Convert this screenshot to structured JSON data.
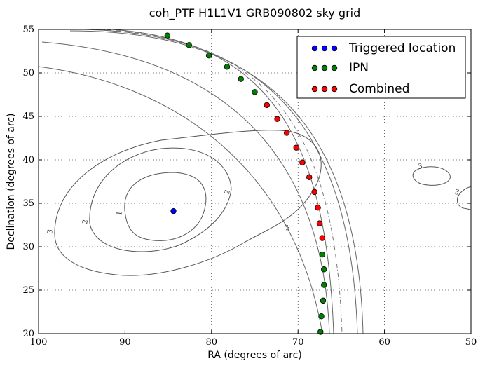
{
  "chart_data": {
    "type": "scatter",
    "title": "coh_PTF H1L1V1 GRB090802 sky grid",
    "xlabel": "RA (degrees of arc)",
    "ylabel": "Declination (degrees of arc)",
    "xlim": [
      100,
      50
    ],
    "ylim": [
      20,
      55
    ],
    "x_ticks": [
      100,
      90,
      80,
      70,
      60,
      50
    ],
    "y_ticks": [
      20,
      25,
      30,
      35,
      40,
      45,
      50,
      55
    ],
    "grid": true,
    "legend_position": "top-right",
    "series": [
      {
        "name": "Triggered location",
        "color": "#0000ff",
        "points": [
          [
            84.4,
            34.1
          ]
        ]
      },
      {
        "name": "IPN",
        "color": "#008000",
        "points": [
          [
            85.1,
            54.3
          ],
          [
            82.6,
            53.2
          ],
          [
            80.3,
            52.0
          ],
          [
            78.2,
            50.7
          ],
          [
            76.6,
            49.3
          ],
          [
            75.0,
            47.8
          ],
          [
            67.2,
            29.1
          ],
          [
            67.0,
            27.4
          ],
          [
            67.0,
            25.6
          ],
          [
            67.1,
            23.8
          ],
          [
            67.3,
            22.0
          ],
          [
            67.4,
            20.2
          ]
        ]
      },
      {
        "name": "Combined",
        "color": "#ff0000",
        "points": [
          [
            73.6,
            46.3
          ],
          [
            72.4,
            44.7
          ],
          [
            71.3,
            43.1
          ],
          [
            70.2,
            41.4
          ],
          [
            69.5,
            39.7
          ],
          [
            68.7,
            38.0
          ],
          [
            68.1,
            36.3
          ],
          [
            67.7,
            34.5
          ],
          [
            67.5,
            32.7
          ],
          [
            67.2,
            31.0
          ]
        ]
      }
    ],
    "contour_labels": [
      "1",
      "2",
      "3",
      "2",
      "3",
      "3",
      "3"
    ]
  }
}
